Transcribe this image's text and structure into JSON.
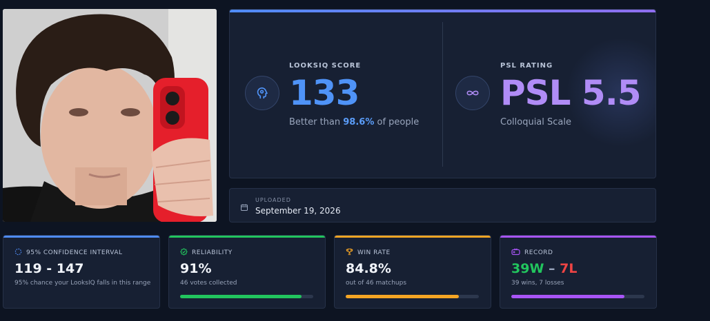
{
  "score_card": {
    "looksiq": {
      "label": "LOOKSIQ SCORE",
      "value": "133",
      "sub_prefix": "Better than ",
      "sub_highlight": "98.6%",
      "sub_suffix": " of people",
      "color": "#4f93f7",
      "icon": "brain-gear-icon"
    },
    "psl": {
      "label": "PSL RATING",
      "value": "PSL 5.5",
      "sub": "Colloquial Scale",
      "color": "#b08cf6",
      "icon": "infinity-icon"
    }
  },
  "upload": {
    "label": "UPLOADED",
    "date": "September 19, 2026",
    "icon": "calendar-icon"
  },
  "stats": {
    "confidence": {
      "label": "95% CONFIDENCE INTERVAL",
      "value": "119 - 147",
      "desc": "95% chance your LooksIQ falls in this range",
      "color": "#4f8cf7",
      "icon": "circle-dashed-icon"
    },
    "reliability": {
      "label": "RELIABILITY",
      "value": "91%",
      "desc": "46 votes collected",
      "progress": 0.91,
      "color": "#22c55e",
      "icon": "shield-check-icon"
    },
    "winrate": {
      "label": "WIN RATE",
      "value": "84.8%",
      "desc": "out of 46 matchups",
      "progress": 0.848,
      "color": "#f5a524",
      "icon": "trophy-icon"
    },
    "record": {
      "label": "RECORD",
      "wins": "39W",
      "separator": " – ",
      "losses": "7L",
      "desc": "39 wins, 7 losses",
      "progress": 0.848,
      "color": "#a855f7",
      "win_color": "#22c55e",
      "loss_color": "#ef4444",
      "icon": "gamepad-icon"
    }
  }
}
